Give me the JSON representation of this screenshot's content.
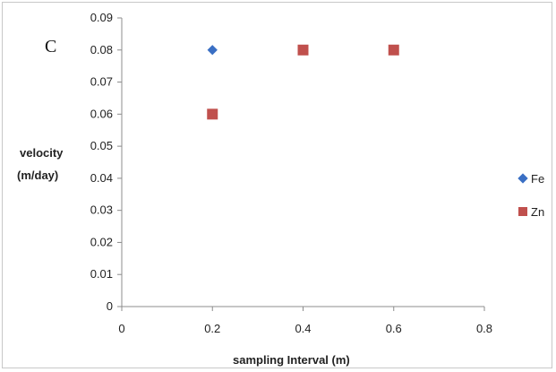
{
  "panel_label": "C",
  "chart_data": {
    "type": "scatter",
    "title": "",
    "xlabel": "sampling Interval (m)",
    "ylabel": [
      "velocity",
      "(m/day)"
    ],
    "xlim": [
      0,
      0.8
    ],
    "ylim": [
      0,
      0.09
    ],
    "x_ticks": [
      "0",
      "0.2",
      "0.4",
      "0.6",
      "0.8"
    ],
    "y_ticks": [
      "0",
      "0.01",
      "0.02",
      "0.03",
      "0.04",
      "0.05",
      "0.06",
      "0.07",
      "0.08",
      "0.09"
    ],
    "grid": false,
    "legend_position": "right",
    "series": [
      {
        "name": "Fe",
        "marker": "diamond",
        "color": "#3a6fc4",
        "points": [
          {
            "x": 0.2,
            "y": 0.08
          }
        ]
      },
      {
        "name": "Zn",
        "marker": "square",
        "color": "#c0504d",
        "points": [
          {
            "x": 0.2,
            "y": 0.06
          },
          {
            "x": 0.4,
            "y": 0.08
          },
          {
            "x": 0.6,
            "y": 0.08
          }
        ]
      }
    ]
  }
}
